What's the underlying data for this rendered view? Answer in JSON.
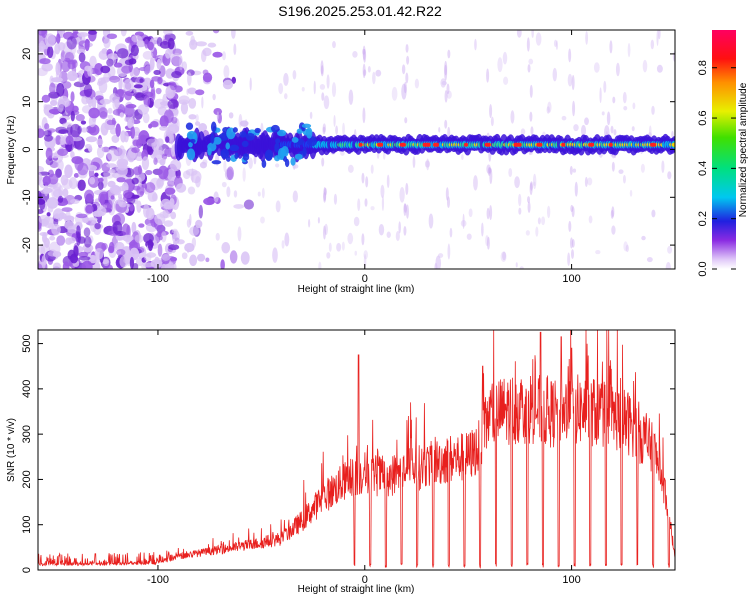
{
  "title": "S196.2025.253.01.42.R22",
  "chart_data": [
    {
      "type": "heatmap",
      "xlabel": "Height of straight line (km)",
      "ylabel": "Frequency (Hz)",
      "xlim": [
        -158,
        150
      ],
      "ylim": [
        -25,
        25
      ],
      "x_ticks": [
        -100,
        0,
        100
      ],
      "y_ticks": [
        -20,
        -10,
        0,
        10,
        20
      ],
      "colorbar": {
        "label": "Normalized spectral amplitude",
        "range": [
          0,
          0.95
        ],
        "ticks": [
          0.0,
          0.2,
          0.4,
          0.6,
          0.8
        ],
        "tick_labels": [
          "0.0",
          "0.2",
          "0.4",
          "0.6",
          "0.8"
        ]
      },
      "description_points": {
        "noise_region_x": [
          -158,
          -90
        ],
        "signal_band_center_hz": 1,
        "peak_x": [
          -20,
          0,
          20,
          40,
          60,
          80,
          100,
          120
        ]
      }
    },
    {
      "type": "line",
      "xlabel": "Height of straight line (km)",
      "ylabel": "SNR (10 * v/v)",
      "xlim": [
        -158,
        150
      ],
      "ylim": [
        0,
        530
      ],
      "x_ticks": [
        -100,
        0,
        100
      ],
      "y_ticks": [
        0,
        100,
        200,
        300,
        400,
        500
      ],
      "series_color": "#e8201e",
      "envelope": {
        "x": [
          -158,
          -130,
          -100,
          -90,
          -70,
          -50,
          -40,
          -30,
          -20,
          -10,
          0,
          10,
          20,
          30,
          40,
          50,
          55,
          60,
          70,
          80,
          90,
          100,
          110,
          120,
          130,
          140,
          145,
          150
        ],
        "y": [
          12,
          13,
          15,
          30,
          45,
          60,
          70,
          110,
          160,
          195,
          215,
          205,
          220,
          230,
          245,
          250,
          270,
          340,
          355,
          360,
          345,
          355,
          350,
          340,
          320,
          260,
          180,
          30
        ]
      },
      "spike_x": [
        -3,
        30,
        57,
        85,
        95,
        100
      ],
      "spike_y": [
        475,
        260,
        450,
        525,
        515,
        490
      ]
    }
  ]
}
